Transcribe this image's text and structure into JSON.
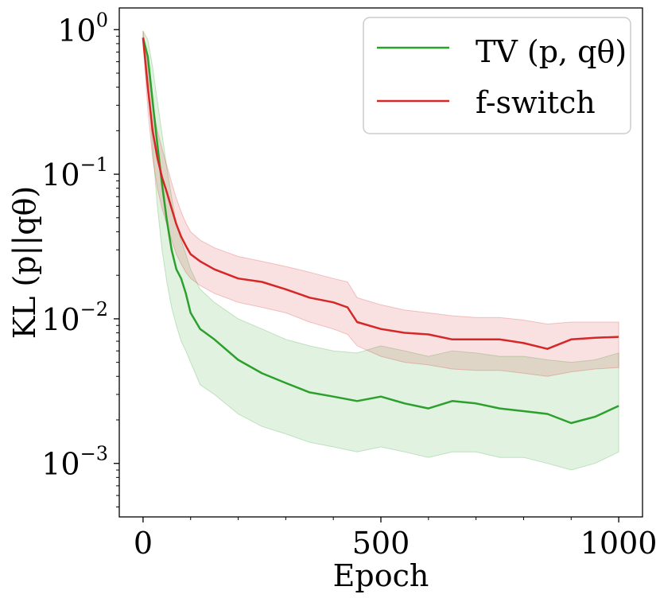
{
  "chart_data": {
    "type": "line",
    "title": "",
    "xlabel": "Epoch",
    "ylabel": "KL (p||qθ)",
    "xlim": [
      -50,
      1050
    ],
    "ylim_log10": [
      -3.37,
      0.15
    ],
    "y_scale": "log",
    "grid": false,
    "legend_position": "top-right",
    "x_ticks": [
      {
        "value": 0,
        "label": "0"
      },
      {
        "value": 500,
        "label": "500"
      },
      {
        "value": 1000,
        "label": "1000"
      }
    ],
    "y_ticks": [
      {
        "exponent": 0,
        "base": "10",
        "sup": "0"
      },
      {
        "exponent": -1,
        "base": "10",
        "sup": "−1"
      },
      {
        "exponent": -2,
        "base": "10",
        "sup": "−2"
      },
      {
        "exponent": -3,
        "base": "10",
        "sup": "−3"
      }
    ],
    "series": [
      {
        "name": "TV (p, qθ)",
        "color": "#2ca02c",
        "x": [
          0,
          10,
          20,
          30,
          40,
          50,
          60,
          70,
          80,
          90,
          100,
          120,
          150,
          200,
          250,
          300,
          350,
          400,
          450,
          500,
          550,
          600,
          650,
          700,
          750,
          800,
          850,
          900,
          950,
          1000
        ],
        "y": [
          0.88,
          0.65,
          0.32,
          0.16,
          0.085,
          0.048,
          0.03,
          0.022,
          0.019,
          0.015,
          0.011,
          0.0085,
          0.0072,
          0.0052,
          0.0042,
          0.0036,
          0.0031,
          0.0029,
          0.0027,
          0.0029,
          0.0026,
          0.0024,
          0.0027,
          0.0026,
          0.0024,
          0.0023,
          0.0022,
          0.0019,
          0.0021,
          0.0025
        ],
        "band_low": [
          0.8,
          0.45,
          0.15,
          0.06,
          0.03,
          0.018,
          0.012,
          0.009,
          0.007,
          0.006,
          0.005,
          0.0035,
          0.003,
          0.0022,
          0.0018,
          0.0016,
          0.0014,
          0.0013,
          0.0012,
          0.0013,
          0.0012,
          0.0011,
          0.0012,
          0.0012,
          0.0011,
          0.0011,
          0.001,
          0.0009,
          0.001,
          0.0012
        ],
        "band_high": [
          0.98,
          0.85,
          0.55,
          0.32,
          0.19,
          0.11,
          0.07,
          0.045,
          0.035,
          0.028,
          0.022,
          0.016,
          0.013,
          0.01,
          0.0085,
          0.0072,
          0.0065,
          0.006,
          0.0058,
          0.0065,
          0.006,
          0.0055,
          0.006,
          0.0058,
          0.0055,
          0.0055,
          0.0052,
          0.005,
          0.0052,
          0.0058
        ]
      },
      {
        "name": "f-switch",
        "color": "#d62728",
        "x": [
          0,
          10,
          20,
          30,
          40,
          50,
          60,
          70,
          80,
          90,
          100,
          120,
          150,
          200,
          250,
          300,
          350,
          400,
          430,
          450,
          500,
          550,
          600,
          650,
          700,
          750,
          800,
          850,
          900,
          950,
          1000
        ],
        "y": [
          0.88,
          0.4,
          0.2,
          0.13,
          0.095,
          0.075,
          0.058,
          0.045,
          0.037,
          0.032,
          0.028,
          0.025,
          0.022,
          0.019,
          0.018,
          0.016,
          0.014,
          0.013,
          0.012,
          0.0095,
          0.0085,
          0.008,
          0.0078,
          0.0072,
          0.0072,
          0.0072,
          0.0068,
          0.0062,
          0.0072,
          0.0074,
          0.0075
        ],
        "band_low": [
          0.8,
          0.28,
          0.13,
          0.08,
          0.058,
          0.045,
          0.035,
          0.028,
          0.024,
          0.021,
          0.019,
          0.017,
          0.015,
          0.013,
          0.012,
          0.011,
          0.0095,
          0.0085,
          0.0078,
          0.0065,
          0.0055,
          0.005,
          0.0048,
          0.0045,
          0.0044,
          0.0044,
          0.0042,
          0.004,
          0.0043,
          0.0045,
          0.0046
        ],
        "band_high": [
          0.98,
          0.55,
          0.3,
          0.2,
          0.15,
          0.115,
          0.088,
          0.068,
          0.055,
          0.046,
          0.04,
          0.035,
          0.031,
          0.027,
          0.025,
          0.023,
          0.021,
          0.019,
          0.018,
          0.014,
          0.0125,
          0.0115,
          0.011,
          0.0105,
          0.0102,
          0.0102,
          0.0098,
          0.0092,
          0.0095,
          0.0095,
          0.0095
        ]
      }
    ],
    "legend": [
      {
        "label": "TV (p, qθ)",
        "color": "#2ca02c"
      },
      {
        "label": "f-switch",
        "color": "#d62728"
      }
    ]
  }
}
